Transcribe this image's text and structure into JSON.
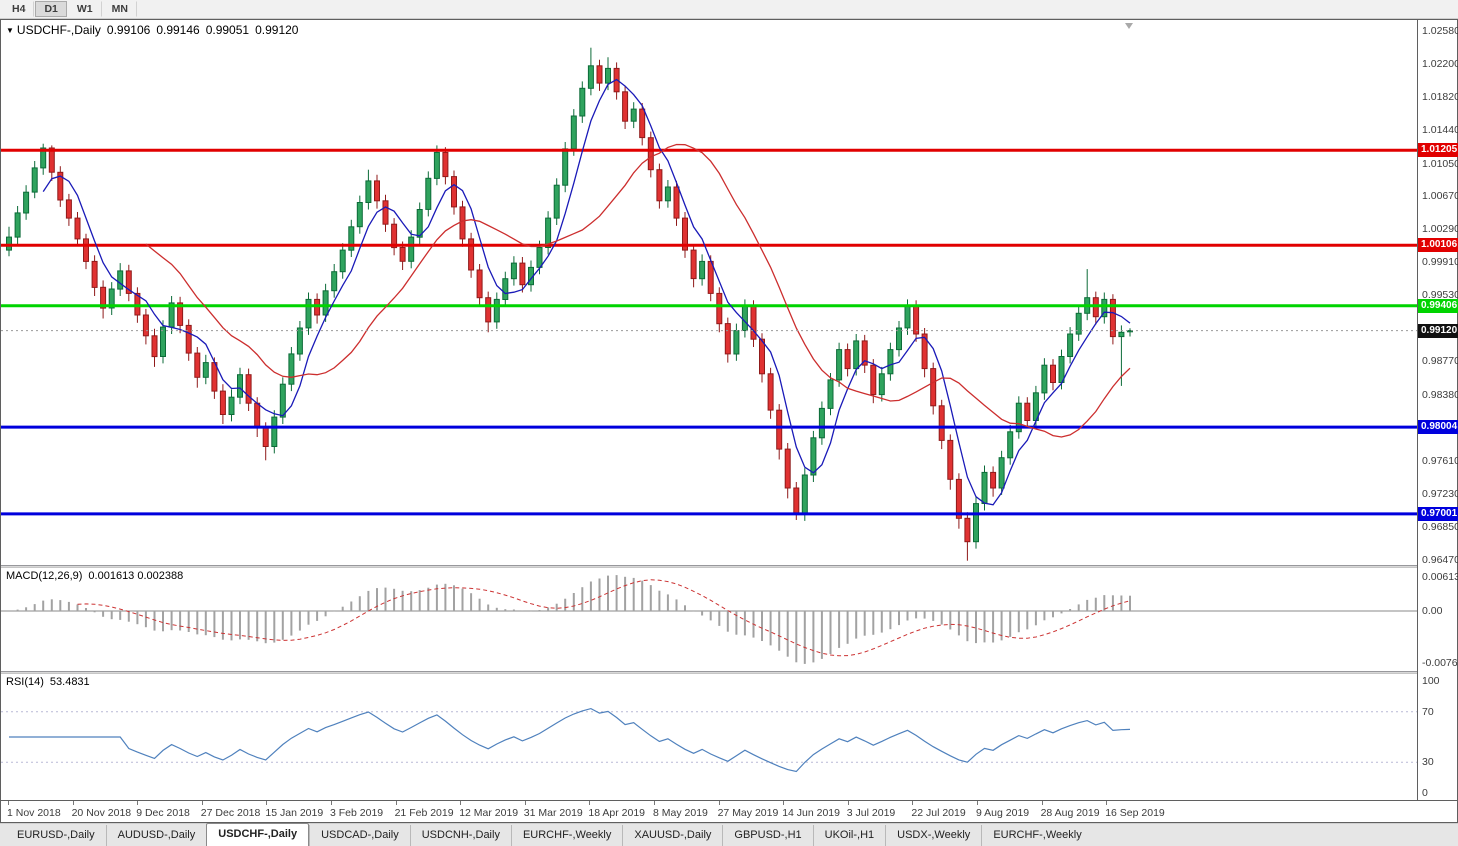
{
  "toolbar": {
    "timeframes": [
      {
        "label": "H4",
        "active": false
      },
      {
        "label": "D1",
        "active": true
      },
      {
        "label": "W1",
        "active": false
      },
      {
        "label": "MN",
        "active": false
      }
    ]
  },
  "chart_header": {
    "dropdown_icon": "▼",
    "symbol": "USDCHF-,Daily",
    "open": "0.99106",
    "high": "0.99146",
    "low": "0.99051",
    "close": "0.99120"
  },
  "macd_panel": {
    "label": "MACD(12,26,9)",
    "values": "0.001613 0.002388",
    "axis_labels": [
      "0.00613",
      "0.00",
      "-0.00761"
    ]
  },
  "rsi_panel": {
    "label": "RSI(14)",
    "value": "53.4831",
    "axis_labels": [
      "100",
      "70",
      "30",
      "0"
    ]
  },
  "time_axis": {
    "labels": [
      "1 Nov 2018",
      "20 Nov 2018",
      "9 Dec 2018",
      "27 Dec 2018",
      "15 Jan 2019",
      "3 Feb 2019",
      "21 Feb 2019",
      "12 Mar 2019",
      "31 Mar 2019",
      "18 Apr 2019",
      "8 May 2019",
      "27 May 2019",
      "14 Jun 2019",
      "3 Jul 2019",
      "22 Jul 2019",
      "9 Aug 2019",
      "28 Aug 2019",
      "16 Sep 2019"
    ]
  },
  "tabs": {
    "items": [
      "EURUSD-,Daily",
      "AUDUSD-,Daily",
      "USDCHF-,Daily",
      "USDCAD-,Daily",
      "USDCNH-,Daily",
      "EURCHF-,Weekly",
      "XAUUSD-,Daily",
      "GBPUSD-,H1",
      "UKOil-,H1",
      "USDX-,Weekly",
      "EURCHF-,Weekly"
    ],
    "active_index": 2
  },
  "chart_data": {
    "type": "candlestick",
    "symbol": "USDCHF-",
    "timeframe": "Daily",
    "last_ohlc": {
      "open": 0.99106,
      "high": 0.99146,
      "low": 0.99051,
      "close": 0.9912
    },
    "ylim": [
      0.9641,
      1.0271
    ],
    "y_ticks": [
      "1.02580",
      "1.02200",
      "1.01820",
      "1.01440",
      "1.01050",
      "1.00670",
      "1.00290",
      "0.99910",
      "0.99530",
      "0.98770",
      "0.98380",
      "0.97610",
      "0.97230",
      "0.96850",
      "0.96470"
    ],
    "levels": [
      {
        "label": "1.01205",
        "price": 1.01205,
        "color": "#e10000",
        "width": 3
      },
      {
        "label": "1.00106",
        "price": 1.00106,
        "color": "#e10000",
        "width": 3
      },
      {
        "label": "0.99406",
        "price": 0.99406,
        "color": "#00d400",
        "width": 3
      },
      {
        "label": "0.98004",
        "price": 0.98004,
        "color": "#0000dd",
        "width": 3
      },
      {
        "label": "0.97001",
        "price": 0.97001,
        "color": "#0000dd",
        "width": 3
      }
    ],
    "current_price": {
      "value": 0.9912,
      "label": "0.99120",
      "tag_color": "#111111"
    },
    "indicators": {
      "moving_averages": [
        {
          "period": 5,
          "color": "#1a1ab8"
        },
        {
          "period": 17,
          "color": "#cc2e2e"
        }
      ],
      "macd": {
        "fast": 12,
        "slow": 26,
        "signal_period": 9
      },
      "rsi": {
        "period": 14,
        "levels": [
          70,
          30
        ]
      }
    },
    "style": {
      "up_fill": "#2fa35e",
      "up_stroke": "#0c6b38",
      "down_fill": "#e03232",
      "down_stroke": "#8f1a1a",
      "macd_hist": "#a2a2a2",
      "macd_signal": "#cc3333",
      "rsi_line": "#4f81bd"
    },
    "candles": [
      [
        1.0005,
        1.0032,
        0.9998,
        1.002
      ],
      [
        1.002,
        1.0056,
        1.0012,
        1.0048
      ],
      [
        1.0048,
        1.008,
        1.004,
        1.0072
      ],
      [
        1.0072,
        1.0108,
        1.0065,
        1.01
      ],
      [
        1.01,
        1.0128,
        1.0092,
        1.0123
      ],
      [
        1.0123,
        1.0126,
        1.0085,
        1.0095
      ],
      [
        1.0095,
        1.0102,
        1.0055,
        1.0063
      ],
      [
        1.0063,
        1.007,
        1.0033,
        1.0042
      ],
      [
        1.0042,
        1.0049,
        1.001,
        1.0018
      ],
      [
        1.0018,
        1.0024,
        0.9983,
        0.9992
      ],
      [
        0.9992,
        0.9999,
        0.9952,
        0.9962
      ],
      [
        0.9962,
        0.997,
        0.9926,
        0.9938
      ],
      [
        0.9938,
        0.9968,
        0.993,
        0.996
      ],
      [
        0.996,
        0.999,
        0.9952,
        0.9981
      ],
      [
        0.9981,
        0.9988,
        0.9946,
        0.9955
      ],
      [
        0.9955,
        0.9962,
        0.9921,
        0.993
      ],
      [
        0.993,
        0.9937,
        0.9896,
        0.9906
      ],
      [
        0.9906,
        0.9914,
        0.987,
        0.9882
      ],
      [
        0.9882,
        0.9924,
        0.9874,
        0.9916
      ],
      [
        0.9916,
        0.9952,
        0.9908,
        0.9944
      ],
      [
        0.9944,
        0.9951,
        0.9909,
        0.9918
      ],
      [
        0.9918,
        0.9925,
        0.9877,
        0.9886
      ],
      [
        0.9886,
        0.9893,
        0.9846,
        0.9858
      ],
      [
        0.9858,
        0.9884,
        0.985,
        0.9875
      ],
      [
        0.9875,
        0.9881,
        0.9833,
        0.9842
      ],
      [
        0.9842,
        0.985,
        0.9804,
        0.9815
      ],
      [
        0.9815,
        0.9844,
        0.9807,
        0.9835
      ],
      [
        0.9835,
        0.9869,
        0.9827,
        0.9861
      ],
      [
        0.9861,
        0.9868,
        0.9819,
        0.9828
      ],
      [
        0.9828,
        0.9835,
        0.9789,
        0.98
      ],
      [
        0.98,
        0.9806,
        0.9762,
        0.9778
      ],
      [
        0.9778,
        0.982,
        0.977,
        0.9812
      ],
      [
        0.9812,
        0.9858,
        0.9804,
        0.985
      ],
      [
        0.985,
        0.9893,
        0.9842,
        0.9885
      ],
      [
        0.9885,
        0.9923,
        0.9877,
        0.9915
      ],
      [
        0.9915,
        0.9956,
        0.9907,
        0.9948
      ],
      [
        0.9948,
        0.9955,
        0.992,
        0.993
      ],
      [
        0.993,
        0.9966,
        0.9922,
        0.9958
      ],
      [
        0.9958,
        0.9989,
        0.995,
        0.998
      ],
      [
        0.998,
        1.0013,
        0.9972,
        1.0005
      ],
      [
        1.0005,
        1.004,
        0.9997,
        1.0032
      ],
      [
        1.0032,
        1.0068,
        1.0024,
        1.006
      ],
      [
        1.006,
        1.0098,
        1.0052,
        1.0085
      ],
      [
        1.0085,
        1.0092,
        1.0053,
        1.0062
      ],
      [
        1.0062,
        1.0069,
        1.0026,
        1.0035
      ],
      [
        1.0035,
        1.0042,
        0.9999,
        1.0008
      ],
      [
        1.0008,
        1.0015,
        0.9982,
        0.9992
      ],
      [
        0.9992,
        1.0028,
        0.9984,
        1.002
      ],
      [
        1.002,
        1.006,
        1.0012,
        1.0052
      ],
      [
        1.0052,
        1.0096,
        1.0044,
        1.0088
      ],
      [
        1.0088,
        1.0126,
        1.008,
        1.0118
      ],
      [
        1.0118,
        1.0124,
        1.0081,
        1.009
      ],
      [
        1.009,
        1.0097,
        1.0046,
        1.0055
      ],
      [
        1.0055,
        1.0062,
        1.0009,
        1.0018
      ],
      [
        1.0018,
        1.0025,
        0.9973,
        0.9982
      ],
      [
        0.9982,
        0.9989,
        0.994,
        0.995
      ],
      [
        0.995,
        0.9957,
        0.991,
        0.9922
      ],
      [
        0.9922,
        0.9956,
        0.9914,
        0.9948
      ],
      [
        0.9948,
        0.998,
        0.994,
        0.9972
      ],
      [
        0.9972,
        0.9998,
        0.9964,
        0.999
      ],
      [
        0.999,
        0.9997,
        0.9956,
        0.9965
      ],
      [
        0.9965,
        0.9993,
        0.9957,
        0.9985
      ],
      [
        0.9985,
        1.0016,
        0.9977,
        1.0008
      ],
      [
        1.0008,
        1.005,
        1.0,
        1.0042
      ],
      [
        1.0042,
        1.0088,
        1.0034,
        1.008
      ],
      [
        1.008,
        1.013,
        1.0072,
        1.0122
      ],
      [
        1.0122,
        1.0168,
        1.0114,
        1.016
      ],
      [
        1.016,
        1.02,
        1.0152,
        1.0192
      ],
      [
        1.0192,
        1.0239,
        1.0184,
        1.0218
      ],
      [
        1.0218,
        1.0225,
        1.0189,
        1.0198
      ],
      [
        1.0198,
        1.0228,
        1.019,
        1.0215
      ],
      [
        1.0215,
        1.0222,
        1.0179,
        1.0188
      ],
      [
        1.0188,
        1.0195,
        1.0145,
        1.0154
      ],
      [
        1.0154,
        1.0176,
        1.0146,
        1.0168
      ],
      [
        1.0168,
        1.0175,
        1.0126,
        1.0135
      ],
      [
        1.0135,
        1.0142,
        1.0089,
        1.0098
      ],
      [
        1.0098,
        1.0105,
        1.0053,
        1.0062
      ],
      [
        1.0062,
        1.0086,
        1.0054,
        1.0078
      ],
      [
        1.0078,
        1.0085,
        1.0033,
        1.0042
      ],
      [
        1.0042,
        1.0049,
        0.9996,
        1.0005
      ],
      [
        1.0005,
        1.0012,
        0.9962,
        0.9972
      ],
      [
        0.9972,
        1.0,
        0.9964,
        0.9992
      ],
      [
        0.9992,
        0.9999,
        0.9946,
        0.9955
      ],
      [
        0.9955,
        0.9962,
        0.991,
        0.992
      ],
      [
        0.992,
        0.9927,
        0.9875,
        0.9885
      ],
      [
        0.9885,
        0.992,
        0.9877,
        0.9912
      ],
      [
        0.9912,
        0.9948,
        0.9904,
        0.994
      ],
      [
        0.994,
        0.9947,
        0.9893,
        0.9902
      ],
      [
        0.9902,
        0.9909,
        0.9852,
        0.9862
      ],
      [
        0.9862,
        0.9869,
        0.981,
        0.982
      ],
      [
        0.982,
        0.9827,
        0.9763,
        0.9775
      ],
      [
        0.9775,
        0.9782,
        0.9718,
        0.973
      ],
      [
        0.973,
        0.9737,
        0.9693,
        0.97
      ],
      [
        0.97,
        0.9753,
        0.9692,
        0.9745
      ],
      [
        0.9745,
        0.9796,
        0.9737,
        0.9788
      ],
      [
        0.9788,
        0.983,
        0.978,
        0.9822
      ],
      [
        0.9822,
        0.9863,
        0.9814,
        0.9855
      ],
      [
        0.9855,
        0.9898,
        0.9847,
        0.989
      ],
      [
        0.989,
        0.9897,
        0.9859,
        0.9868
      ],
      [
        0.9868,
        0.9908,
        0.986,
        0.99
      ],
      [
        0.99,
        0.9907,
        0.9863,
        0.9872
      ],
      [
        0.9872,
        0.9879,
        0.9828,
        0.9838
      ],
      [
        0.9838,
        0.987,
        0.983,
        0.9862
      ],
      [
        0.9862,
        0.9898,
        0.9854,
        0.989
      ],
      [
        0.989,
        0.9923,
        0.9882,
        0.9915
      ],
      [
        0.9915,
        0.9948,
        0.9907,
        0.994
      ],
      [
        0.994,
        0.9947,
        0.9899,
        0.9908
      ],
      [
        0.9908,
        0.9915,
        0.9858,
        0.9868
      ],
      [
        0.9868,
        0.9875,
        0.9815,
        0.9825
      ],
      [
        0.9825,
        0.9832,
        0.9775,
        0.9785
      ],
      [
        0.9785,
        0.9792,
        0.9728,
        0.974
      ],
      [
        0.974,
        0.9747,
        0.9683,
        0.9695
      ],
      [
        0.9695,
        0.9702,
        0.9646,
        0.9668
      ],
      [
        0.9668,
        0.972,
        0.966,
        0.9712
      ],
      [
        0.9712,
        0.9756,
        0.9704,
        0.9748
      ],
      [
        0.9748,
        0.9755,
        0.972,
        0.973
      ],
      [
        0.973,
        0.9773,
        0.9722,
        0.9765
      ],
      [
        0.9765,
        0.9803,
        0.9757,
        0.9795
      ],
      [
        0.9795,
        0.9836,
        0.9787,
        0.9828
      ],
      [
        0.9828,
        0.9835,
        0.9799,
        0.9808
      ],
      [
        0.9808,
        0.9848,
        0.98,
        0.984
      ],
      [
        0.984,
        0.988,
        0.9832,
        0.9872
      ],
      [
        0.9872,
        0.9879,
        0.9843,
        0.9852
      ],
      [
        0.9852,
        0.989,
        0.9844,
        0.9882
      ],
      [
        0.9882,
        0.9916,
        0.9874,
        0.9908
      ],
      [
        0.9908,
        0.994,
        0.99,
        0.9932
      ],
      [
        0.9932,
        0.9983,
        0.9924,
        0.995
      ],
      [
        0.995,
        0.9957,
        0.9919,
        0.9928
      ],
      [
        0.9928,
        0.9956,
        0.992,
        0.9948
      ],
      [
        0.9948,
        0.9954,
        0.9896,
        0.9905
      ],
      [
        0.9905,
        0.9918,
        0.9848,
        0.991
      ],
      [
        0.99106,
        0.99146,
        0.99051,
        0.9912
      ]
    ]
  }
}
